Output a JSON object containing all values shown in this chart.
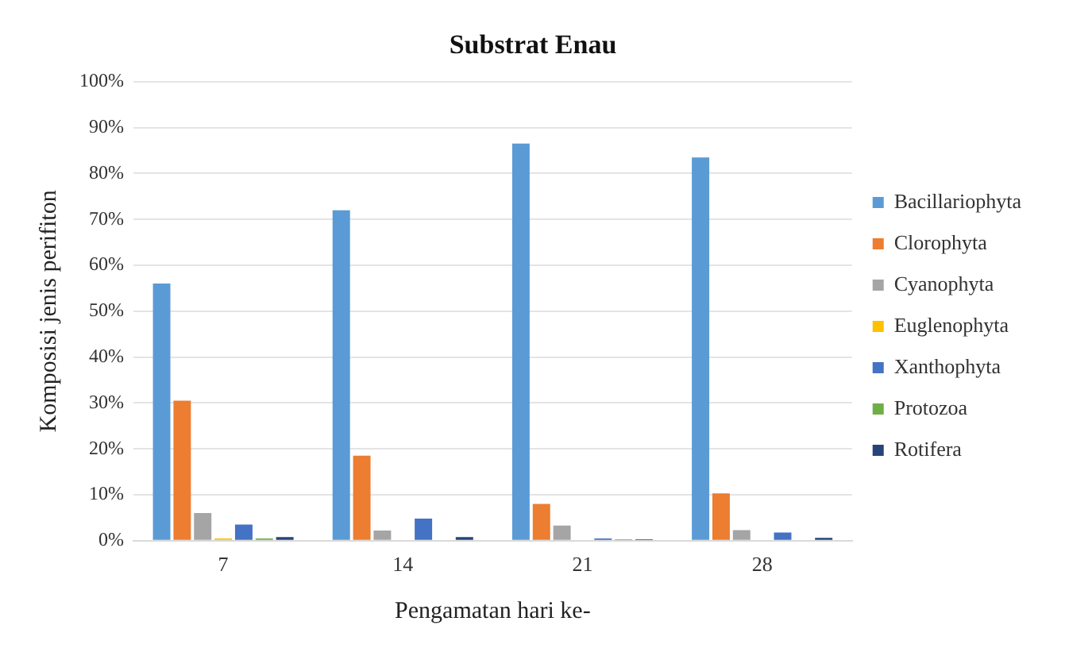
{
  "chart_data": {
    "type": "bar",
    "title": "Substrat Enau",
    "xlabel": "Pengamatan hari ke-",
    "ylabel": "Komposisi jenis perifiton",
    "categories": [
      "7",
      "14",
      "21",
      "28"
    ],
    "series": [
      {
        "name": "Bacillariophyta",
        "color": "#5b9bd5",
        "values": [
          56,
          72,
          86.5,
          83.5
        ]
      },
      {
        "name": "Clorophyta",
        "color": "#ed7d31",
        "values": [
          30.5,
          18.5,
          8,
          10.3
        ]
      },
      {
        "name": "Cyanophyta",
        "color": "#a5a5a5",
        "values": [
          6,
          2.2,
          3.3,
          2.3
        ]
      },
      {
        "name": "Euglenophyta",
        "color": "#ffc000",
        "values": [
          0.5,
          0,
          0,
          0
        ]
      },
      {
        "name": "Xanthophyta",
        "color": "#4472c4",
        "values": [
          3.5,
          4.8,
          0.5,
          1.8
        ]
      },
      {
        "name": "Protozoa",
        "color": "#70ad47",
        "values": [
          0.5,
          null,
          0.3,
          null
        ]
      },
      {
        "name": "Rotifera",
        "color": "#264478",
        "values": [
          0.8,
          0.8,
          0.3,
          0.6
        ]
      }
    ],
    "ylim": [
      0,
      100
    ],
    "yticks": [
      {
        "value": 0,
        "label": "0%"
      },
      {
        "value": 10,
        "label": "10%"
      },
      {
        "value": 20,
        "label": "20%"
      },
      {
        "value": 30,
        "label": "30%"
      },
      {
        "value": 40,
        "label": "40%"
      },
      {
        "value": 50,
        "label": "50%"
      },
      {
        "value": 60,
        "label": "60%"
      },
      {
        "value": 70,
        "label": "70%"
      },
      {
        "value": 80,
        "label": "80%"
      },
      {
        "value": 90,
        "label": "90%"
      },
      {
        "value": 100,
        "label": "100%"
      }
    ],
    "grid": "y",
    "legend": "right"
  }
}
